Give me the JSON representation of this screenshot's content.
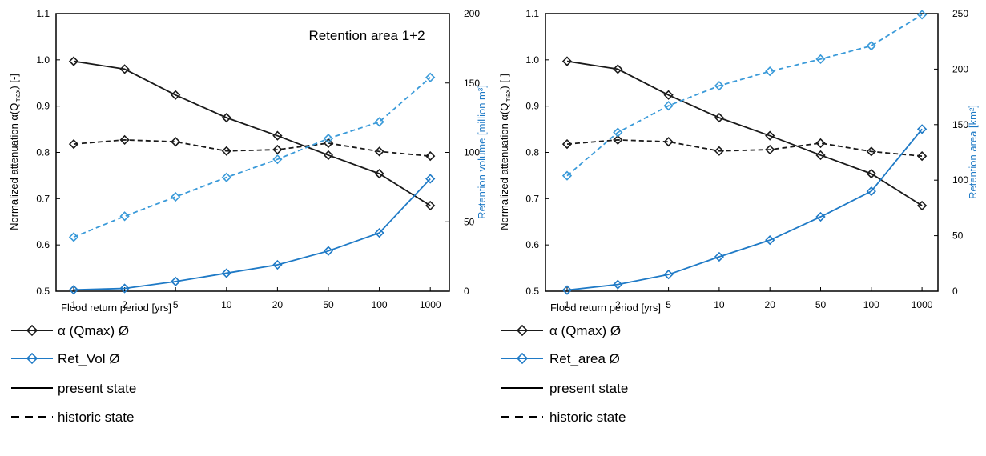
{
  "chart_data": [
    {
      "type": "line",
      "annotation": "Retention area 1+2",
      "xlabel": "Flood return period [yrs]",
      "categories": [
        "1",
        "2",
        "5",
        "10",
        "20",
        "50",
        "100",
        "1000"
      ],
      "ylabel_prefix": "Normalized  attenuation α(Q",
      "ylabel_sub": "max",
      "ylabel_suffix": ") [-]",
      "ylim": [
        0.5,
        1.1
      ],
      "yticks": [
        "0.5",
        "0.6",
        "0.7",
        "0.8",
        "0.9",
        "1.0",
        "1.1"
      ],
      "y2label": "Retention volume [million m³]",
      "y2lim": [
        0,
        200
      ],
      "y2ticks": [
        "0",
        "50",
        "100",
        "150",
        "200"
      ],
      "grid": false,
      "series": [
        {
          "key": "alpha_present",
          "axis": "left",
          "color": "#1a1a1a",
          "dash": false,
          "values": [
            0.997,
            0.98,
            0.924,
            0.875,
            0.836,
            0.794,
            0.754,
            0.685
          ]
        },
        {
          "key": "alpha_historic",
          "axis": "left",
          "color": "#1a1a1a",
          "dash": true,
          "values": [
            0.818,
            0.827,
            0.823,
            0.803,
            0.806,
            0.82,
            0.802,
            0.792
          ]
        },
        {
          "key": "ret_present",
          "axis": "right",
          "color": "#1f7ac6",
          "dash": false,
          "values": [
            1,
            2,
            7,
            13,
            19,
            29,
            42,
            81
          ]
        },
        {
          "key": "ret_historic",
          "axis": "right",
          "color": "#3a9ad9",
          "dash": true,
          "values": [
            39,
            54,
            68,
            82,
            95,
            110,
            122,
            154
          ]
        }
      ],
      "legend": [
        {
          "label": "α (Qmax) Ø",
          "style": "alpha"
        },
        {
          "label": "Ret_Vol Ø",
          "style": "ret"
        },
        {
          "label": "present state",
          "style": "solid"
        },
        {
          "label": "historic state",
          "style": "dash"
        }
      ]
    },
    {
      "type": "line",
      "annotation": "",
      "xlabel": "Flood return period [yrs]",
      "categories": [
        "1",
        "2",
        "5",
        "10",
        "20",
        "50",
        "100",
        "1000"
      ],
      "ylabel_prefix": "Normalized  attenuation α(Q",
      "ylabel_sub": "max",
      "ylabel_suffix": ") [-]",
      "ylim": [
        0.5,
        1.1
      ],
      "yticks": [
        "0.5",
        "0.6",
        "0.7",
        "0.8",
        "0.9",
        "1.0",
        "1.1"
      ],
      "y2label": "Retention area [km²]",
      "y2lim": [
        0,
        250
      ],
      "y2ticks": [
        "0",
        "50",
        "100",
        "150",
        "200",
        "250"
      ],
      "grid": false,
      "series": [
        {
          "key": "alpha_present",
          "axis": "left",
          "color": "#1a1a1a",
          "dash": false,
          "values": [
            0.997,
            0.98,
            0.924,
            0.875,
            0.836,
            0.794,
            0.754,
            0.685
          ]
        },
        {
          "key": "alpha_historic",
          "axis": "left",
          "color": "#1a1a1a",
          "dash": true,
          "values": [
            0.818,
            0.827,
            0.823,
            0.803,
            0.806,
            0.82,
            0.802,
            0.792
          ]
        },
        {
          "key": "ret_present",
          "axis": "right",
          "color": "#1f7ac6",
          "dash": false,
          "values": [
            1,
            6,
            15,
            31,
            46,
            67,
            90,
            146
          ]
        },
        {
          "key": "ret_historic",
          "axis": "right",
          "color": "#3a9ad9",
          "dash": true,
          "values": [
            104,
            143,
            167,
            185,
            198,
            209,
            221,
            249
          ]
        }
      ],
      "legend": [
        {
          "label": "α (Qmax) Ø",
          "style": "alpha"
        },
        {
          "label": "Ret_area Ø",
          "style": "ret"
        },
        {
          "label": "present state",
          "style": "solid"
        },
        {
          "label": "historic state",
          "style": "dash"
        }
      ]
    }
  ]
}
